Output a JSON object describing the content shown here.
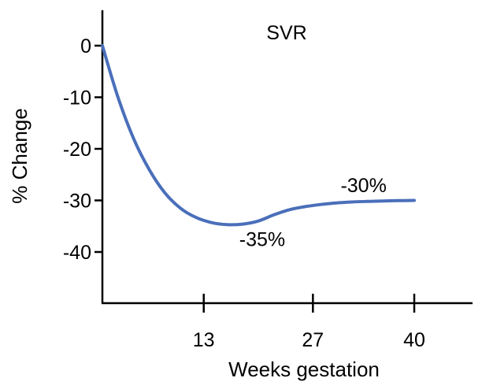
{
  "chart_data": {
    "type": "line",
    "title": "SVR",
    "xlabel": "Weeks gestation",
    "ylabel": "% Change",
    "xlim": [
      0,
      47
    ],
    "ylim": [
      -50,
      7
    ],
    "x_ticks": [
      13,
      27,
      40
    ],
    "y_ticks": [
      0,
      -10,
      -20,
      -30,
      -40
    ],
    "grid": false,
    "legend": "none",
    "series": [
      {
        "color": "#4a6fba",
        "x": [
          0,
          2,
          4,
          6,
          8,
          10,
          12,
          14,
          16,
          18,
          20,
          22,
          24,
          26,
          28,
          30,
          32,
          34,
          36,
          38,
          40
        ],
        "y": [
          0,
          -10,
          -18,
          -24,
          -28.5,
          -31.5,
          -33.3,
          -34.3,
          -34.7,
          -34.6,
          -34,
          -32.8,
          -31.8,
          -31.2,
          -30.8,
          -30.5,
          -30.3,
          -30.2,
          -30.1,
          -30.05,
          -30
        ]
      }
    ],
    "annotations": [
      {
        "text": "-35%",
        "x": 20.5,
        "y": -37.5
      },
      {
        "text": "-30%",
        "x": 33.5,
        "y": -27
      }
    ]
  }
}
